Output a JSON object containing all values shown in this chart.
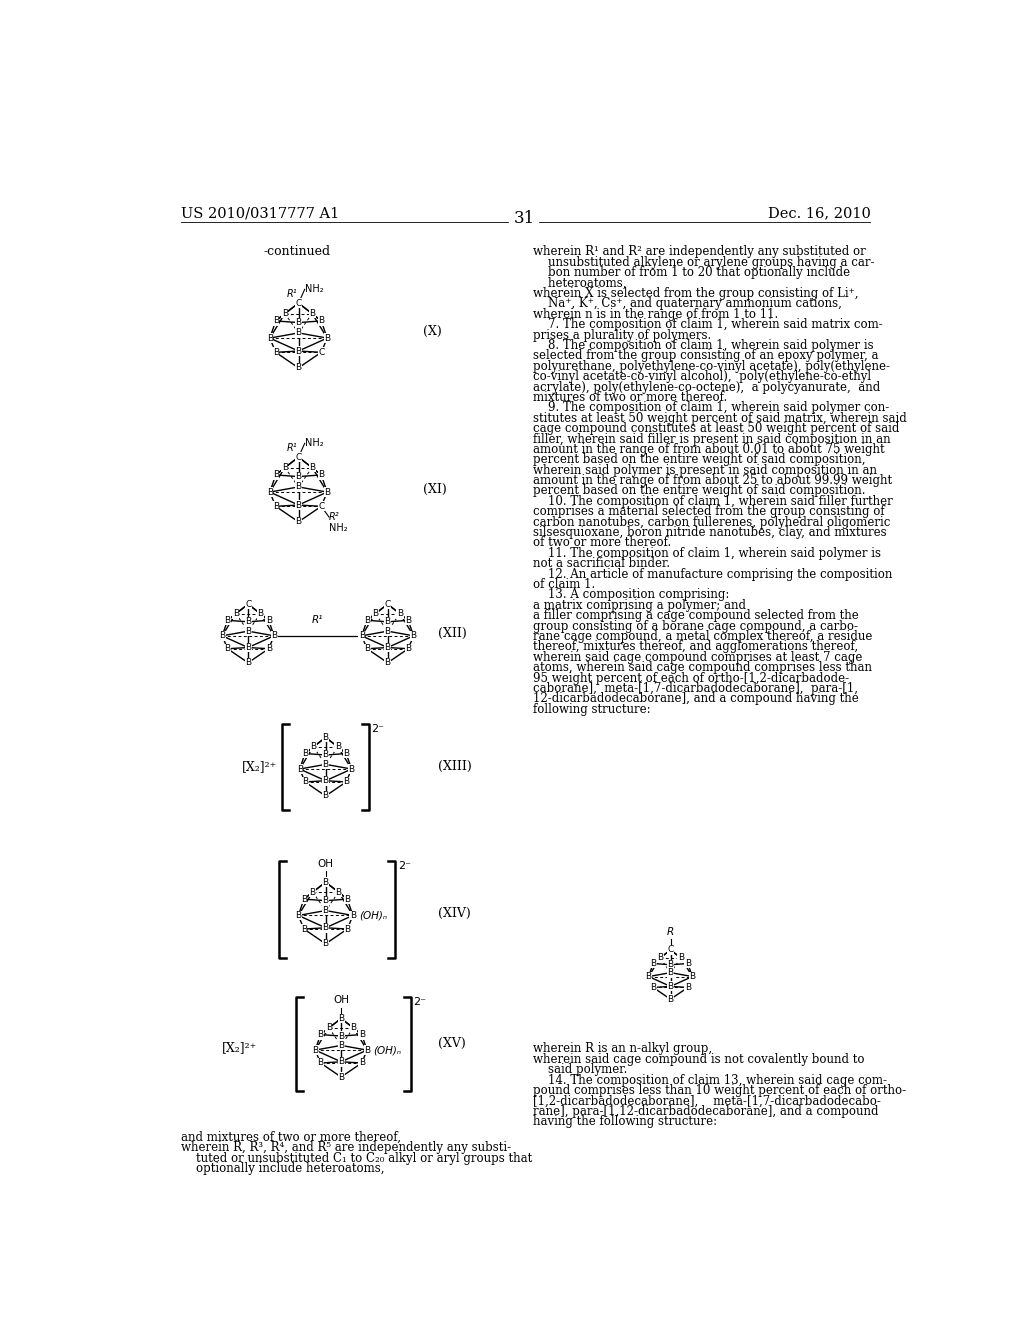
{
  "page_number": "31",
  "patent_number": "US 2010/0317777 A1",
  "patent_date": "Dec. 16, 2010",
  "background_color": "#ffffff",
  "continued_label": "-continued",
  "struct_labels": [
    "(X)",
    "(XI)",
    "(XII)",
    "(XIII)",
    "(XIV)",
    "(XV)"
  ],
  "rc_lines": [
    "wherein R¹ and R² are independently any substituted or",
    "    unsubstituted alkylene or arylene groups having a car-",
    "    bon number of from 1 to 20 that optionally include",
    "    heteroatoms,",
    "wherein X is selected from the group consisting of Li⁺,",
    "    Na⁺, K⁺, Cs⁺, and quaternary ammonium cations,",
    "wherein n is in the range of from 1 to 11.",
    "    7. The composition of claim 1, wherein said matrix com-",
    "prises a plurality of polymers.",
    "    8. The composition of claim 1, wherein said polymer is",
    "selected from the group consisting of an epoxy polymer, a",
    "polyurethane, polyethylene-co-vinyl acetate), poly(ethylene-",
    "co-vinyl acetate-co-vinyl alcohol),  poly(ethylene-co-ethyl",
    "acrylate), poly(ethylene-co-octene),  a polycyanurate,  and",
    "mixtures of two or more thereof.",
    "    9. The composition of claim 1, wherein said polymer con-",
    "stitutes at least 50 weight percent of said matrix, wherein said",
    "cage compound constitutes at least 50 weight percent of said",
    "filler, wherein said filler is present in said composition in an",
    "amount in the range of from about 0.01 to about 75 weight",
    "percent based on the entire weight of said composition,",
    "wherein said polymer is present in said composition in an",
    "amount in the range of from about 25 to about 99.99 weight",
    "percent based on the entire weight of said composition.",
    "    10. The composition of claim 1, wherein said filler further",
    "comprises a material selected from the group consisting of",
    "carbon nanotubes, carbon fullerenes, polyhedral oligomeric",
    "silsesquioxane, boron nitride nanotubes, clay, and mixtures",
    "of two or more thereof.",
    "    11. The composition of claim 1, wherein said polymer is",
    "not a sacrificial binder.",
    "    12. An article of manufacture comprising the composition",
    "of claim 1.",
    "    13. A composition comprising:",
    "a matrix comprising a polymer; and",
    "a filler comprising a cage compound selected from the",
    "group consisting of a borane cage compound, a carbo-",
    "rane cage compound, a metal complex thereof, a residue",
    "thereof, mixtures thereof, and agglomerations thereof,",
    "wherein said cage compound comprises at least 7 cage",
    "atoms, wherein said cage compound comprises less than",
    "95 weight percent of each of ortho-[1,2-dicarbadode-",
    "caborane],  meta-[1,7-dicarbadodecaborane],  para-[1,",
    "12-dicarbadodecaborane], and a compound having the",
    "following structure:"
  ],
  "brt_lines": [
    "wherein R is an n-alkyl group,",
    "wherein said cage compound is not covalently bound to",
    "    said polymer.",
    "    14. The composition of claim 13, wherein said cage com-",
    "pound comprises less than 10 weight percent of each of ortho-",
    "[1,2-dicarbadodecaborane],    meta-[1,7-dicarbadodecabo-",
    "rane], para-[1,12-dicarbadodecaborane], and a compound",
    "having the following structure:"
  ],
  "bt_lines": [
    "and mixtures of two or more thereof,",
    "wherein R, R³, R⁴, and R⁵ are independently any substi-",
    "    tuted or unsubstituted C₁ to C₂₀ alkyl or aryl groups that",
    "    optionally include heteroatoms,"
  ]
}
